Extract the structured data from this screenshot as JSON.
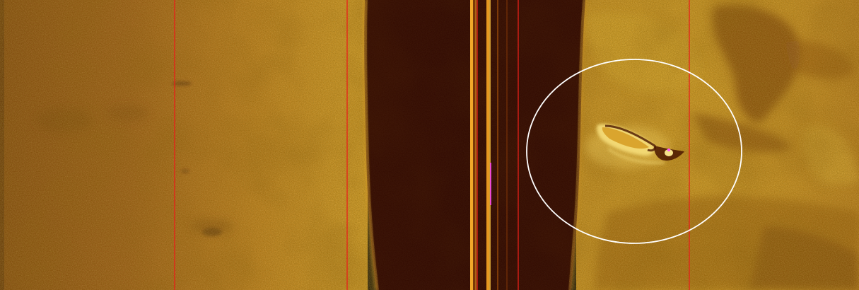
{
  "sonar": {
    "palette": {
      "background_dark": "#3a0a00",
      "seabed_brown": "#8a4a0c",
      "seabed_mid": "#b87415",
      "seabed_bright": "#d9a12a",
      "seabed_highlight": "#f0c84a",
      "water_column": "#2a0400",
      "nadir_line": "#ffb020",
      "range_line_color": "#e8201a",
      "target_ring_color": "#ffffff",
      "anomaly_magenta": "#ff40ff"
    },
    "range_lines": {
      "count": 5
    },
    "target": {
      "label": "",
      "marked": true,
      "object_icon": "wreck-shadow-icon"
    }
  }
}
